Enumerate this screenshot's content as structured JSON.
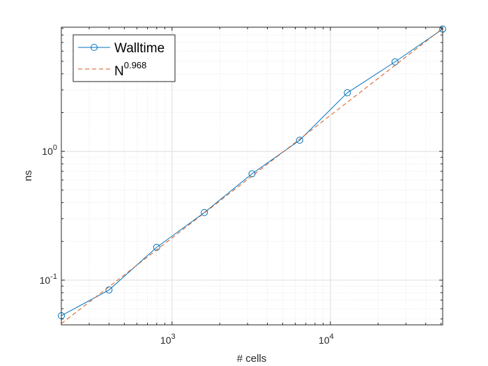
{
  "chart_data": {
    "type": "line",
    "title": "",
    "xlabel": "# cells",
    "ylabel": "ns",
    "xscale": "log",
    "yscale": "log",
    "xlim": [
      200,
      51200
    ],
    "ylim": [
      0.045,
      9.2
    ],
    "grid": true,
    "minor_grid": true,
    "legend_position": "top-left",
    "x_ticks": [
      {
        "value": 1000,
        "base": "10",
        "exp": "3"
      },
      {
        "value": 10000,
        "base": "10",
        "exp": "4"
      }
    ],
    "y_ticks": [
      {
        "value": 0.1,
        "base": "10",
        "exp": "-1"
      },
      {
        "value": 1,
        "base": "10",
        "exp": "0"
      }
    ],
    "series": [
      {
        "name": "Walltime",
        "style": "solid-circle-markers",
        "color": "#0072BD",
        "x": [
          200,
          400,
          800,
          1600,
          3200,
          6400,
          12800,
          25600,
          51200
        ],
        "y": [
          0.053,
          0.084,
          0.18,
          0.335,
          0.67,
          1.22,
          2.85,
          4.95,
          8.9
        ]
      },
      {
        "name_base": "N",
        "name_sup": "0.968",
        "style": "dashed",
        "color": "#D95319",
        "x": [
          200,
          51200
        ],
        "y": [
          0.046,
          9.0
        ]
      }
    ]
  }
}
